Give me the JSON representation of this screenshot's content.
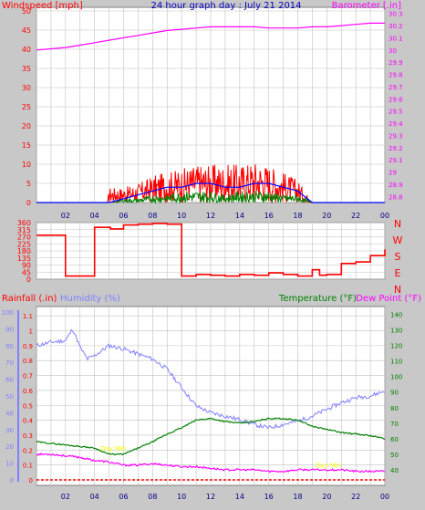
{
  "chart_data": [
    {
      "type": "line",
      "title": "24 hour graph day : July 21 2014",
      "y_left_label": "Windspeed [mph]",
      "y_right_label": "Barometer [.in]",
      "y_left_ticks": [
        "0",
        "5",
        "10",
        "15",
        "20",
        "25",
        "30",
        "35",
        "40",
        "45",
        "50"
      ],
      "y_left_range": [
        0,
        50
      ],
      "y_right_ticks": [
        "28.8",
        "28.9",
        "29",
        "29.1",
        "29.2",
        "29.3",
        "29.4",
        "29.5",
        "29.6",
        "29.7",
        "29.8",
        "29.9",
        "30",
        "30.1",
        "30.2",
        "30.3"
      ],
      "y_right_range": [
        28.75,
        30.35
      ],
      "x_ticks": [
        "02",
        "04",
        "06",
        "08",
        "10",
        "12",
        "14",
        "16",
        "18",
        "20",
        "22",
        "00"
      ],
      "x_range_hours": [
        0,
        24
      ],
      "grid": true,
      "series": [
        {
          "name": "Barometer",
          "axis": "right",
          "color": "#ff00ff",
          "x": [
            0,
            1,
            2,
            3,
            4,
            5,
            6,
            7,
            8,
            9,
            10,
            11,
            12,
            13,
            14,
            15,
            16,
            17,
            18,
            19,
            20,
            21,
            22,
            23,
            24
          ],
          "y": [
            30.0,
            30.01,
            30.02,
            30.04,
            30.06,
            30.08,
            30.1,
            30.12,
            30.14,
            30.16,
            30.17,
            30.18,
            30.19,
            30.19,
            30.19,
            30.19,
            30.18,
            30.18,
            30.18,
            30.19,
            30.19,
            30.2,
            30.21,
            30.22,
            30.22
          ]
        },
        {
          "name": "Wind gust",
          "axis": "left",
          "color": "#ff0000",
          "x": [
            0,
            1,
            2,
            3,
            4,
            4.9,
            5,
            6,
            7,
            8,
            9,
            10,
            11,
            12,
            13,
            14,
            15,
            16,
            17,
            18,
            19,
            20,
            21,
            22,
            23,
            24
          ],
          "y": [
            0,
            0,
            0,
            0,
            0,
            0,
            4,
            4,
            5,
            7,
            8,
            9,
            10,
            10,
            10,
            10,
            11,
            10,
            8,
            6,
            0,
            0,
            0,
            0,
            0,
            0
          ]
        },
        {
          "name": "Wind average",
          "axis": "left",
          "color": "#0000ff",
          "x": [
            0,
            5,
            6,
            7,
            8,
            9,
            10,
            11,
            12,
            13,
            14,
            15,
            16,
            17,
            18,
            19,
            20,
            24
          ],
          "y": [
            0,
            0,
            1,
            2,
            3,
            4,
            4,
            5,
            5,
            4,
            4,
            5,
            5,
            4,
            3,
            0,
            0,
            0
          ]
        },
        {
          "name": "Wind speed",
          "axis": "left",
          "color": "#008000",
          "x": [
            0,
            5,
            6,
            7,
            8,
            9,
            10,
            11,
            12,
            13,
            14,
            15,
            16,
            17,
            18,
            19,
            20,
            24
          ],
          "y": [
            0,
            0,
            1,
            1,
            2,
            2,
            3,
            3,
            3,
            2,
            3,
            3,
            3,
            2,
            2,
            0,
            0,
            0
          ]
        }
      ]
    },
    {
      "type": "line",
      "y_left_ticks": [
        "0",
        "45",
        "90",
        "135",
        "180",
        "225",
        "270",
        "315",
        "360"
      ],
      "y_left_range": [
        0,
        360
      ],
      "y_right_ticks": [
        "N",
        "W",
        "S",
        "E",
        "N"
      ],
      "x_range_hours": [
        0,
        24
      ],
      "grid": true,
      "series": [
        {
          "name": "Wind direction",
          "axis": "left",
          "color": "#ff0000",
          "x": [
            0,
            1.5,
            2,
            3.9,
            4,
            5.1,
            6,
            7,
            8,
            9,
            10,
            11,
            12,
            13,
            14,
            15,
            16,
            17,
            18,
            19,
            19.5,
            20,
            21,
            22,
            23,
            24
          ],
          "y": [
            280,
            280,
            20,
            20,
            330,
            320,
            345,
            350,
            355,
            350,
            20,
            30,
            25,
            20,
            30,
            25,
            40,
            30,
            20,
            60,
            25,
            30,
            100,
            110,
            150,
            190
          ]
        }
      ]
    },
    {
      "type": "line",
      "y_rain_label": "Rainfall (.in)",
      "y_humidity_label": "Humidity (%)",
      "y_right_label_temp": "Temperature (°F)",
      "y_right_label_dew": "Dew Point (°F)",
      "y_rain_ticks": [
        "0",
        "0.1",
        "0.2",
        "0.3",
        "0.4",
        "0.5",
        "0.6",
        "0.7",
        "0.8",
        "0.9",
        "1",
        "1.1"
      ],
      "y_rain_range": [
        0,
        1.15
      ],
      "y_humidity_ticks": [
        "0",
        "10",
        "20",
        "30",
        "40",
        "50",
        "60",
        "70",
        "80",
        "90",
        "100"
      ],
      "y_humidity_range": [
        0,
        100
      ],
      "y_temp_ticks": [
        "40",
        "50",
        "60",
        "70",
        "80",
        "90",
        "100",
        "110",
        "120",
        "130",
        "140"
      ],
      "y_temp_range": [
        30,
        145
      ],
      "x_ticks": [
        "02",
        "04",
        "06",
        "08",
        "10",
        "12",
        "14",
        "16",
        "18",
        "20",
        "22",
        "00"
      ],
      "x_range_hours": [
        0,
        24
      ],
      "annotations": [
        "Day Min",
        "Day Min"
      ],
      "grid": true,
      "series": [
        {
          "name": "Humidity",
          "axis": "humidity",
          "color": "#8080ff",
          "x": [
            0,
            1,
            2,
            2.5,
            3,
            3.5,
            4,
            5,
            6,
            7,
            8,
            9,
            10,
            11,
            12,
            13,
            14,
            15,
            16,
            17,
            18,
            19,
            20,
            21,
            22,
            23,
            24
          ],
          "y": [
            80,
            82,
            83,
            90,
            79,
            72,
            74,
            80,
            78,
            75,
            72,
            66,
            55,
            44,
            40,
            38,
            36,
            33,
            31,
            33,
            35,
            38,
            42,
            46,
            49,
            50,
            53
          ]
        },
        {
          "name": "Temperature",
          "axis": "temp",
          "color": "#008000",
          "x": [
            0,
            1,
            2,
            3,
            4,
            5,
            6,
            7,
            8,
            9,
            10,
            11,
            12,
            13,
            14,
            15,
            16,
            17,
            18,
            19,
            20,
            21,
            22,
            23,
            24
          ],
          "y": [
            58,
            57,
            56,
            55,
            54,
            50,
            50,
            54,
            58,
            63,
            67,
            72,
            73,
            71,
            70,
            71,
            73,
            73,
            72,
            68,
            66,
            64,
            63,
            62,
            60
          ]
        },
        {
          "name": "Dew Point",
          "axis": "temp",
          "color": "#ff00ff",
          "x": [
            0,
            1,
            2,
            3,
            4,
            5,
            6,
            7,
            8,
            9,
            10,
            11,
            12,
            13,
            14,
            15,
            16,
            17,
            18,
            19,
            20,
            21,
            22,
            23,
            24
          ],
          "y": [
            50,
            50,
            49,
            48,
            46,
            45,
            43,
            43,
            44,
            43,
            42,
            42,
            41,
            40,
            40,
            40,
            39,
            39,
            40,
            40,
            40,
            40,
            39,
            39,
            39
          ]
        },
        {
          "name": "Rainfall",
          "axis": "rain",
          "color": "#ff0000",
          "x": [
            0,
            24
          ],
          "y": [
            0,
            0
          ]
        }
      ]
    }
  ],
  "colors": {
    "background": "#c8c8c8",
    "plot_bg": "#ffffff",
    "grid": "#c0c0c0",
    "title": "#0000c0",
    "day_min": "#ffff00"
  }
}
